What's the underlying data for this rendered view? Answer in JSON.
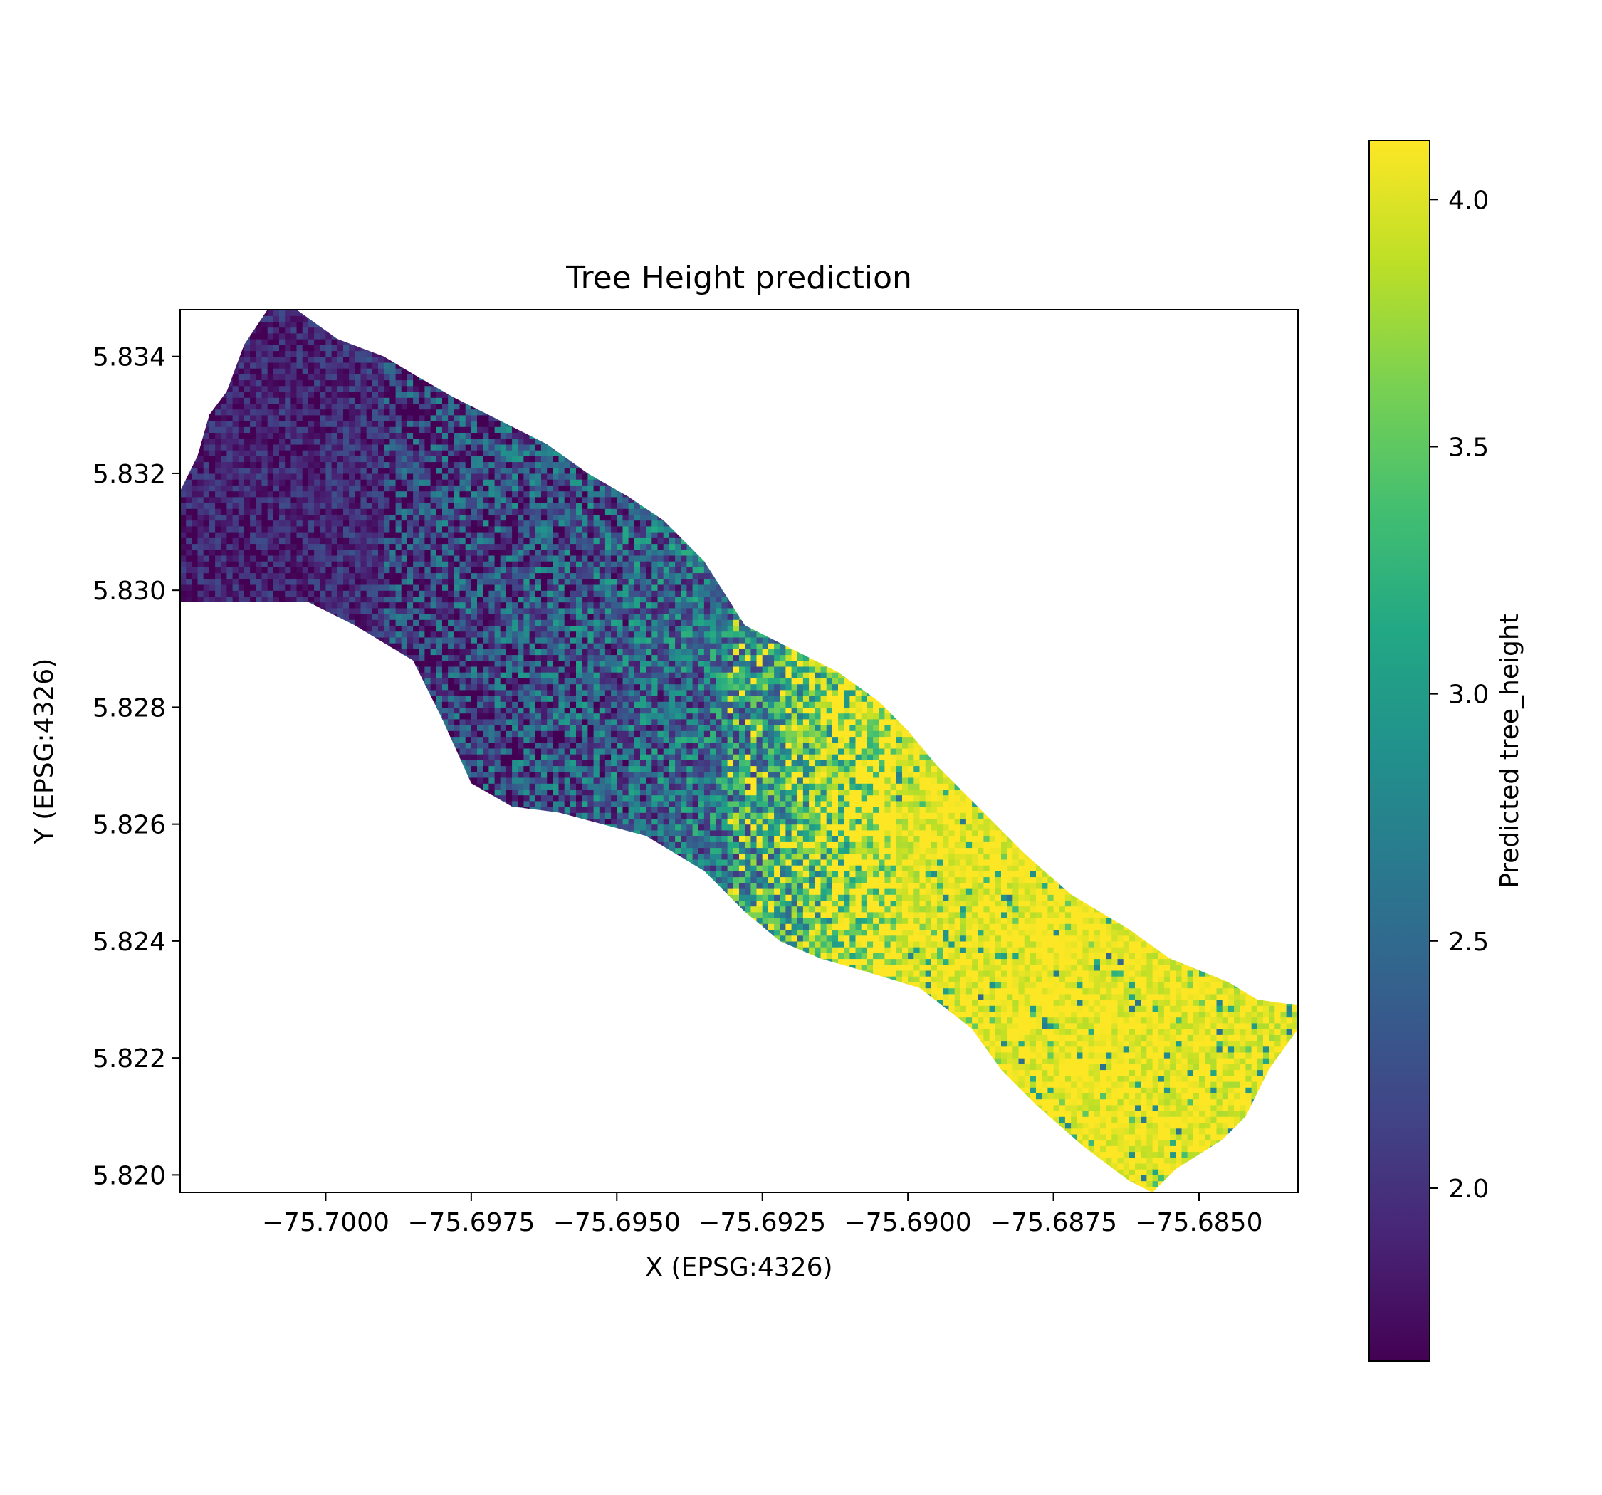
{
  "chart_data": {
    "type": "heatmap",
    "title": "Tree Height prediction",
    "xlabel": "X (EPSG:4326)",
    "ylabel": "Y (EPSG:4326)",
    "xlim": [
      -75.7025,
      -75.6833
    ],
    "ylim": [
      5.8197,
      5.8348
    ],
    "xticks": [
      -75.7,
      -75.6975,
      -75.695,
      -75.6925,
      -75.69,
      -75.6875,
      -75.685
    ],
    "xtick_labels": [
      "−75.7000",
      "−75.6975",
      "−75.6950",
      "−75.6925",
      "−75.6900",
      "−75.6875",
      "−75.6850"
    ],
    "yticks": [
      5.82,
      5.822,
      5.824,
      5.826,
      5.828,
      5.83,
      5.832,
      5.834
    ],
    "ytick_labels": [
      "5.820",
      "5.822",
      "5.824",
      "5.826",
      "5.828",
      "5.830",
      "5.832",
      "5.834"
    ],
    "grid": false,
    "colormap": "viridis",
    "colorbar": {
      "label": "Predicted tree_height",
      "range": [
        1.65,
        4.12
      ],
      "ticks": [
        2.0,
        2.5,
        3.0,
        3.5,
        4.0
      ],
      "tick_labels": [
        "2.0",
        "2.5",
        "3.0",
        "3.5",
        "4.0"
      ]
    },
    "grid_cell_size": 0.0001,
    "region_outline": [
      [
        -75.7025,
        5.8317
      ],
      [
        -75.7022,
        5.8323
      ],
      [
        -75.702,
        5.833
      ],
      [
        -75.7017,
        5.8334
      ],
      [
        -75.7014,
        5.8342
      ],
      [
        -75.701,
        5.8348
      ],
      [
        -75.7005,
        5.8348
      ],
      [
        -75.6998,
        5.8343
      ],
      [
        -75.699,
        5.834
      ],
      [
        -75.6985,
        5.8337
      ],
      [
        -75.6978,
        5.8333
      ],
      [
        -75.697,
        5.8329
      ],
      [
        -75.6962,
        5.8325
      ],
      [
        -75.6955,
        5.832
      ],
      [
        -75.6948,
        5.8316
      ],
      [
        -75.6942,
        5.8312
      ],
      [
        -75.6935,
        5.8305
      ],
      [
        -75.6928,
        5.8294
      ],
      [
        -75.692,
        5.829
      ],
      [
        -75.6912,
        5.8286
      ],
      [
        -75.6905,
        5.8281
      ],
      [
        -75.69,
        5.8276
      ],
      [
        -75.6895,
        5.827
      ],
      [
        -75.689,
        5.8265
      ],
      [
        -75.688,
        5.8255
      ],
      [
        -75.6872,
        5.8248
      ],
      [
        -75.6862,
        5.8242
      ],
      [
        -75.6855,
        5.8237
      ],
      [
        -75.6845,
        5.8233
      ],
      [
        -75.684,
        5.823
      ],
      [
        -75.6833,
        5.8229
      ],
      [
        -75.6833,
        5.8225
      ],
      [
        -75.6838,
        5.8218
      ],
      [
        -75.6842,
        5.821
      ],
      [
        -75.6846,
        5.8206
      ],
      [
        -75.6854,
        5.8201
      ],
      [
        -75.6858,
        5.8197
      ],
      [
        -75.6862,
        5.8199
      ],
      [
        -75.687,
        5.8205
      ],
      [
        -75.6878,
        5.8212
      ],
      [
        -75.6884,
        5.8218
      ],
      [
        -75.6889,
        5.8225
      ],
      [
        -75.6898,
        5.8232
      ],
      [
        -75.6908,
        5.8235
      ],
      [
        -75.6915,
        5.8237
      ],
      [
        -75.6922,
        5.824
      ],
      [
        -75.6928,
        5.8245
      ],
      [
        -75.6935,
        5.8252
      ],
      [
        -75.6945,
        5.8258
      ],
      [
        -75.696,
        5.8262
      ],
      [
        -75.6968,
        5.8263
      ],
      [
        -75.6975,
        5.8267
      ],
      [
        -75.698,
        5.8278
      ],
      [
        -75.6985,
        5.8288
      ],
      [
        -75.6995,
        5.8294
      ],
      [
        -75.7003,
        5.8298
      ],
      [
        -75.7015,
        5.8298
      ],
      [
        -75.7025,
        5.8298
      ]
    ],
    "value_trend_along_x": [
      [
        -75.7025,
        1.85
      ],
      [
        -75.7,
        1.9
      ],
      [
        -75.6975,
        2.15
      ],
      [
        -75.695,
        2.35
      ],
      [
        -75.6935,
        2.55
      ],
      [
        -75.6925,
        2.9
      ],
      [
        -75.6915,
        3.4
      ],
      [
        -75.6905,
        3.9
      ],
      [
        -75.6895,
        4.05
      ],
      [
        -75.6875,
        4.1
      ],
      [
        -75.6855,
        4.08
      ],
      [
        -75.6833,
        4.0
      ]
    ]
  }
}
